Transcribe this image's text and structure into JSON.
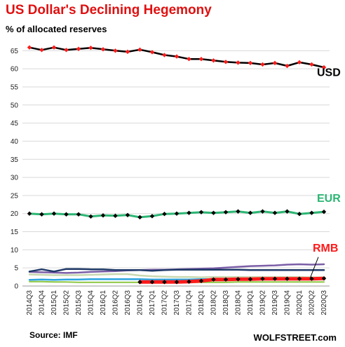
{
  "title": "US Dollar's  Declining Hegemony",
  "subtitle": "% of allocated reserves",
  "source": "Source: IMF",
  "credit": "WOLFSTREET.com",
  "colors": {
    "title": "#e01010",
    "usd": "#000000",
    "usd_marker": "#ff1a1a",
    "eur": "#2bb673",
    "eur_marker": "#000000",
    "rmb": "#ff1a1a",
    "rmb_marker": "#000000"
  },
  "chart_data": {
    "type": "line",
    "title": "US Dollar's  Declining Hegemony",
    "ylabel": "% of allocated reserves",
    "ylim": [
      0,
      67
    ],
    "yticks": [
      0,
      5,
      10,
      15,
      20,
      25,
      30,
      35,
      40,
      45,
      50,
      55,
      60,
      65
    ],
    "grid": true,
    "categories": [
      "2014Q3",
      "2014Q4",
      "2015Q1",
      "2015Q2",
      "2015Q3",
      "2015Q4",
      "2016Q1",
      "2016Q2",
      "2016Q3",
      "2016Q4",
      "2017Q1",
      "2017Q2",
      "2017Q3",
      "2017Q4",
      "2018Q1",
      "2018Q2",
      "2018Q3",
      "2018Q4",
      "2019Q1",
      "2019Q2",
      "2019Q3",
      "2019Q4",
      "2020Q1",
      "2020Q2",
      "2020Q3"
    ],
    "series": [
      {
        "name": "USD",
        "color": "#000000",
        "width": 2.5,
        "marker": "#ff1a1a",
        "labeled": true,
        "values": [
          65.9,
          65.2,
          65.9,
          65.2,
          65.5,
          65.8,
          65.4,
          65.0,
          64.7,
          65.3,
          64.6,
          63.8,
          63.4,
          62.7,
          62.7,
          62.3,
          61.9,
          61.7,
          61.6,
          61.2,
          61.6,
          60.8,
          61.8,
          61.2,
          60.4
        ]
      },
      {
        "name": "EUR",
        "color": "#2bb673",
        "width": 3,
        "marker": "#000000",
        "labeled": true,
        "values": [
          20.0,
          19.8,
          20.0,
          19.8,
          19.8,
          19.2,
          19.5,
          19.4,
          19.6,
          19.0,
          19.3,
          19.9,
          20.0,
          20.2,
          20.4,
          20.2,
          20.4,
          20.6,
          20.2,
          20.6,
          20.2,
          20.6,
          19.9,
          20.2,
          20.5
        ]
      },
      {
        "name": "RMB",
        "color": "#ff1a1a",
        "width": 5,
        "marker": "#000000",
        "labeled": true,
        "start_index": 9,
        "values": [
          null,
          null,
          null,
          null,
          null,
          null,
          null,
          null,
          null,
          1.1,
          1.1,
          1.1,
          1.1,
          1.2,
          1.4,
          1.8,
          1.8,
          1.9,
          1.9,
          2.0,
          2.0,
          2.0,
          2.0,
          2.0,
          2.1
        ]
      },
      {
        "name": "",
        "color": "#7b5ea7",
        "width": 2.5,
        "marker": null,
        "labeled": false,
        "values": [
          3.9,
          3.8,
          3.7,
          3.6,
          3.7,
          3.9,
          4.0,
          4.1,
          4.3,
          4.4,
          4.5,
          4.5,
          4.6,
          4.7,
          4.8,
          4.9,
          5.1,
          5.3,
          5.5,
          5.6,
          5.7,
          5.9,
          6.0,
          5.9,
          6.0
        ]
      },
      {
        "name": "",
        "color": "#1f3a68",
        "width": 2.5,
        "marker": null,
        "labeled": false,
        "values": [
          4.0,
          4.6,
          4.0,
          4.7,
          4.7,
          4.6,
          4.6,
          4.4,
          4.4,
          4.4,
          4.2,
          4.4,
          4.5,
          4.5,
          4.5,
          4.5,
          4.5,
          4.5,
          4.4,
          4.4,
          4.4,
          4.4,
          4.4,
          4.4,
          4.4
        ]
      },
      {
        "name": "",
        "color": "#c8d8b0",
        "width": 2.5,
        "marker": null,
        "labeled": false,
        "values": [
          3.2,
          3.1,
          3.0,
          3.0,
          3.0,
          3.1,
          3.2,
          3.3,
          3.3,
          2.9,
          2.7,
          2.6,
          2.5,
          2.5,
          2.4,
          2.5,
          2.5,
          2.5,
          2.5,
          2.5,
          2.5,
          2.5,
          2.5,
          2.4,
          2.4
        ]
      },
      {
        "name": "",
        "color": "#2aa5e0",
        "width": 2.5,
        "marker": null,
        "labeled": false,
        "values": [
          1.7,
          1.8,
          1.7,
          1.8,
          1.8,
          1.9,
          1.9,
          1.9,
          1.9,
          1.9,
          1.8,
          1.8,
          1.8,
          1.8,
          1.9,
          1.9,
          1.9,
          1.9,
          1.9,
          1.9,
          1.9,
          1.9,
          1.9,
          1.9,
          2.0
        ]
      },
      {
        "name": "",
        "color": "#8cc63f",
        "width": 2,
        "marker": null,
        "labeled": false,
        "values": [
          1.2,
          1.2,
          1.1,
          1.1,
          1.0,
          1.0,
          1.0,
          1.0,
          1.0,
          1.0,
          0.9,
          0.9,
          1.0,
          1.0,
          1.0,
          1.0,
          1.0,
          1.1,
          1.1,
          1.1,
          1.1,
          1.1,
          1.1,
          1.1,
          1.1
        ]
      }
    ],
    "series_labels": {
      "USD": "USD",
      "EUR": "EUR",
      "RMB": "RMB"
    }
  }
}
